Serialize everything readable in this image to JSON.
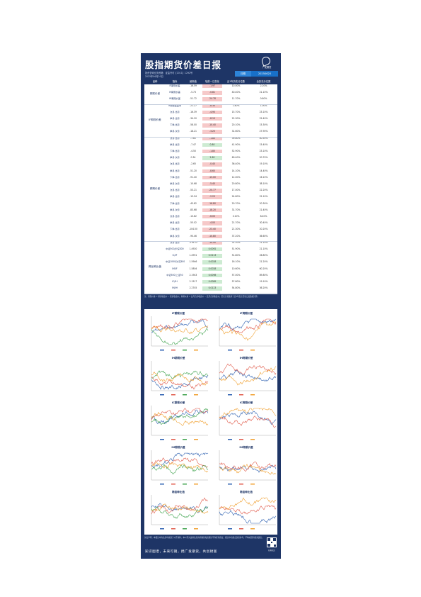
{
  "header": {
    "title": "股指期货价差日报",
    "subtitle_line1": "投资咨询业务资格：证监许可【2011】1292号",
    "subtitle_line2": "2025年06月20日",
    "tag_label": "日期",
    "tag_date": "20250620",
    "logo_text": "广发期货"
  },
  "table": {
    "headers": [
      "品种",
      "指标",
      "最新值",
      "较前一日变化",
      "近1年历史分位数",
      "全历史分位数"
    ],
    "groups": [
      {
        "name": "期现价差",
        "rows": 3
      },
      {
        "name": "IF期现价差",
        "rows": 5
      },
      {
        "name": "跨期价差",
        "rows": 16
      },
      {
        "name": "跨品种比值",
        "rows": 8
      }
    ],
    "rows": [
      [
        "IF期现价差",
        "-16.59",
        "-1.97",
        "10.00%",
        "2.20%"
      ],
      [
        "IH期现价差",
        "-5.73",
        "-0.81",
        "40.40%",
        "21.10%"
      ],
      [
        "IM期现价差",
        "-51.72",
        "-24.78",
        "11.70%",
        "0.80%"
      ],
      [
        "IF期现基差率",
        "-21.27",
        "-8.30",
        "1.40%",
        "1.00%"
      ],
      [
        "次月-当月",
        "-16.39",
        "-4.90",
        "15.70%",
        "23.10%"
      ],
      [
        "季月-当月",
        "-34.20",
        "-8.10",
        "22.30%",
        "22.40%"
      ],
      [
        "下季-当月",
        "-58.00",
        "-10.40",
        "20.10%",
        "15.30%"
      ],
      [
        "季月-次月",
        "-18.21",
        "-3.20",
        "31.60%",
        "27.90%"
      ],
      [
        "次月-当月",
        "-7.81",
        "-1.80",
        "39.80%",
        "40.50%"
      ],
      [
        "季月-当月",
        "-7.47",
        "0.80",
        "41.90%",
        "15.40%"
      ],
      [
        "下季-当月",
        "-4.50",
        "-1.80",
        "52.90%",
        "23.10%"
      ],
      [
        "季月-次月",
        "0.34",
        "2.60",
        "60.40%",
        "20.70%"
      ],
      [
        "次月-当月",
        "-2.65",
        "-0.40",
        "36.40%",
        "19.10%"
      ],
      [
        "季月-当月",
        "-51.20",
        "-8.60",
        "14.10%",
        "14.40%"
      ],
      [
        "下季-当月",
        "-91.40",
        "-13.00",
        "12.00%",
        "16.10%"
      ],
      [
        "季月-次月",
        "-10.68",
        "-5.40",
        "20.80%",
        "38.10%"
      ],
      [
        "次月-当月",
        "-53.21",
        "-20.77",
        "17.00%",
        "22.20%"
      ],
      [
        "季月-当月",
        "-15.94",
        "-2.20",
        "24.80%",
        "22.10%"
      ],
      [
        "下季-当月",
        "-45.82",
        "-16.80",
        "20.70%",
        "20.30%"
      ],
      [
        "季月-次月",
        "-83.68",
        "-18.20",
        "31.70%",
        "21.40%"
      ],
      [
        "次月-当月",
        "-13.82",
        "-6.00",
        "3.10%",
        "8.40%"
      ],
      [
        "季月-当月",
        "-55.02",
        "-4.00",
        "21.70%",
        "30.40%"
      ],
      [
        "下季-当月",
        "-104.50",
        "-23.40",
        "21.30%",
        "20.20%"
      ],
      [
        "季月-次月",
        "-90.46",
        "-10.80",
        "37.20%",
        "36.60%"
      ],
      [
        "次月-当月",
        "-176.12",
        "-14.90",
        "31.20%",
        "21.10%"
      ],
      [
        "中证500/沪深300",
        "1.4920",
        "0.0092",
        "51.90%",
        "21.10%"
      ],
      [
        "IC/IF",
        "1.4951",
        "0.0113",
        "51.80%",
        "26.80%"
      ],
      [
        "中证1000/沪深300",
        "1.5946",
        "0.0028",
        "16.10%",
        "21.20%"
      ],
      [
        "IM/IF",
        "1.5804",
        "0.0028",
        "10.60%",
        "60.20%"
      ],
      [
        "中证500/上证50",
        "2.1943",
        "0.0098",
        "57.00%",
        "89.80%"
      ],
      [
        "IC/IH",
        "2.1517",
        "0.0089",
        "57.80%",
        "19.10%"
      ],
      [
        "IM/IH",
        "2.2745",
        "0.0123",
        "54.80%",
        "36.20%"
      ]
    ]
  },
  "note_text": "注：期现价差 = 期货收盘价 − 现货收盘价；跨期价差 = 远月合约收盘价 − 近月合约收盘价；历史分位数基于近1年及全历史日度数据计算。",
  "charts": [
    {
      "title": "IF期现价差",
      "colors": [
        "#2b5fb0",
        "#e05a4a",
        "#3fa34d",
        "#f0a030"
      ]
    },
    {
      "title": "IF跨期价差",
      "colors": [
        "#2b5fb0",
        "#e05a4a",
        "#f0a030"
      ]
    },
    {
      "title": "IH期现价差",
      "colors": [
        "#2b5fb0",
        "#e05a4a",
        "#3fa34d",
        "#f0a030"
      ]
    },
    {
      "title": "IH跨期价差",
      "colors": [
        "#2b5fb0",
        "#e05a4a",
        "#f0a030"
      ]
    },
    {
      "title": "IC期现价差",
      "colors": [
        "#2b5fb0",
        "#e05a4a",
        "#3fa34d",
        "#f0a030"
      ]
    },
    {
      "title": "IC跨期价差",
      "colors": [
        "#2b5fb0",
        "#e05a4a",
        "#f0a030"
      ]
    },
    {
      "title": "IM期现价差",
      "colors": [
        "#2b5fb0",
        "#e05a4a",
        "#3fa34d",
        "#f0a030"
      ]
    },
    {
      "title": "IM跨期价差",
      "colors": [
        "#2b5fb0",
        "#e05a4a",
        "#f0a030"
      ]
    },
    {
      "title": "跨品种比值",
      "colors": [
        "#2b5fb0",
        "#e05a4a",
        "#3fa34d",
        "#f0a030"
      ]
    },
    {
      "title": "跨品种比值",
      "colors": [
        "#2b5fb0",
        "#e05a4a",
        "#f0a030"
      ]
    }
  ],
  "footer": {
    "disclaimer": "免责声明：本报告中的信息均来源于公开资料，本公司对这些信息的准确性和完整性不作任何保证，报告中的观点仅供参考，不构成任何投资建议。",
    "slogan": "知识图谱，未来可期，携广发期货，共创财富",
    "qr_caption": "扫码关注"
  },
  "colors": {
    "navy": "#1e3566",
    "up": "#f6c9c9",
    "down": "#cdebd2",
    "accent": "#2d84d9"
  }
}
